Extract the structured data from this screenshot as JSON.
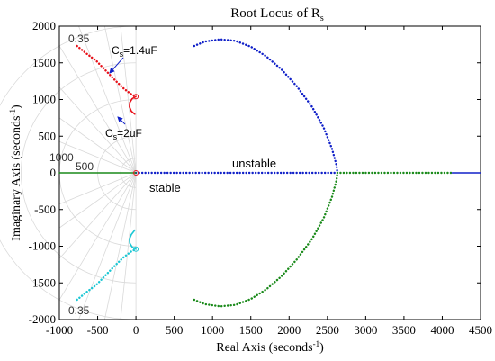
{
  "chart_data": {
    "type": "scatter",
    "title": "Root Locus of R",
    "title_subscript": "s",
    "xlabel": "Real Axis (seconds",
    "xlabel_sup": "-1",
    "xlabel_end": ")",
    "ylabel": "Imaginary Axis (seconds",
    "ylabel_sup": "-1",
    "ylabel_end": ")",
    "xlim": [
      -1000,
      4500
    ],
    "ylim": [
      -2000,
      2000
    ],
    "xticks": [
      -1000,
      -500,
      0,
      500,
      1000,
      1500,
      2000,
      2500,
      3000,
      3500,
      4000,
      4500
    ],
    "yticks": [
      -2000,
      -1500,
      -1000,
      -500,
      0,
      500,
      1000,
      1500,
      2000
    ],
    "grid": "polar damping/frequency grid",
    "colors": {
      "red": "#e8111a",
      "cyan": "#1bc7d4",
      "blue": "#1020c8",
      "green": "#1a8a1a",
      "grid": "#d9d9d9",
      "axis": "#000000"
    },
    "annotations": {
      "damping_top": "0.35",
      "damping_bottom": "0.35",
      "freq_1000": "1000",
      "freq_500": "500",
      "cs_top": "C",
      "cs_top_sub": "s",
      "cs_top_val": "=1.4uF",
      "cs_bottom": "C",
      "cs_bottom_sub": "s",
      "cs_bottom_val": "=2uF",
      "unstable": "unstable",
      "stable": "stable"
    },
    "series": [
      {
        "color": "red",
        "style": "dotted",
        "points": [
          [
            -770,
            1730
          ],
          [
            -650,
            1630
          ],
          [
            -520,
            1530
          ],
          [
            -400,
            1400
          ],
          [
            -280,
            1270
          ],
          [
            -160,
            1150
          ],
          [
            -60,
            1070
          ],
          [
            0,
            1040
          ]
        ]
      },
      {
        "color": "red",
        "style": "solid",
        "points": [
          [
            0,
            1040
          ],
          [
            -50,
            1010
          ],
          [
            -80,
            960
          ],
          [
            -85,
            900
          ],
          [
            -60,
            840
          ],
          [
            -15,
            800
          ]
        ]
      },
      {
        "color": "cyan",
        "style": "dotted",
        "points": [
          [
            -770,
            -1730
          ],
          [
            -650,
            -1630
          ],
          [
            -520,
            -1530
          ],
          [
            -400,
            -1400
          ],
          [
            -280,
            -1270
          ],
          [
            -160,
            -1150
          ],
          [
            -60,
            -1070
          ],
          [
            0,
            -1040
          ]
        ]
      },
      {
        "color": "cyan",
        "style": "solid",
        "points": [
          [
            0,
            -1040
          ],
          [
            -50,
            -1010
          ],
          [
            -80,
            -960
          ],
          [
            -85,
            -900
          ],
          [
            -60,
            -840
          ],
          [
            -15,
            -780
          ]
        ]
      },
      {
        "color": "blue",
        "style": "dotted",
        "points": [
          [
            760,
            1730
          ],
          [
            900,
            1790
          ],
          [
            1100,
            1820
          ],
          [
            1300,
            1800
          ],
          [
            1500,
            1720
          ],
          [
            1700,
            1590
          ],
          [
            1900,
            1410
          ],
          [
            2100,
            1180
          ],
          [
            2300,
            900
          ],
          [
            2450,
            620
          ],
          [
            2560,
            330
          ],
          [
            2620,
            100
          ],
          [
            2630,
            0
          ]
        ]
      },
      {
        "color": "green",
        "style": "dotted",
        "points": [
          [
            760,
            -1730
          ],
          [
            900,
            -1790
          ],
          [
            1100,
            -1820
          ],
          [
            1300,
            -1800
          ],
          [
            1500,
            -1720
          ],
          [
            1700,
            -1590
          ],
          [
            1900,
            -1410
          ],
          [
            2100,
            -1180
          ],
          [
            2300,
            -900
          ],
          [
            2450,
            -620
          ],
          [
            2560,
            -330
          ],
          [
            2620,
            -100
          ],
          [
            2630,
            0
          ]
        ]
      },
      {
        "color": "blue",
        "style": "dotted",
        "points": [
          [
            0,
            0
          ],
          [
            2630,
            0
          ]
        ]
      },
      {
        "color": "green",
        "style": "dotted",
        "points": [
          [
            2630,
            0
          ],
          [
            4130,
            0
          ]
        ]
      },
      {
        "color": "blue",
        "style": "solid",
        "points": [
          [
            4130,
            0
          ],
          [
            4500,
            0
          ]
        ]
      },
      {
        "color": "green",
        "style": "solid",
        "points": [
          [
            -1000,
            0
          ],
          [
            0,
            0
          ]
        ]
      }
    ],
    "markers": [
      {
        "color": "red",
        "x": 0,
        "y": 1040
      },
      {
        "color": "cyan",
        "x": 0,
        "y": -1040
      },
      {
        "color": "red",
        "x": 0,
        "y": 0
      }
    ]
  }
}
